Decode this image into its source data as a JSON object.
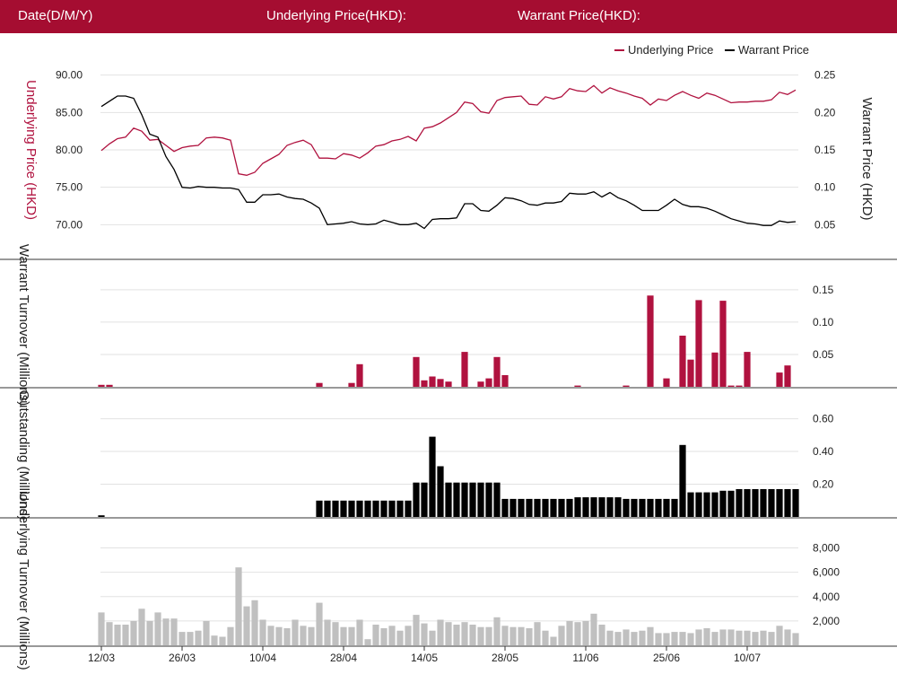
{
  "header": {
    "date_label": "Date(D/M/Y)",
    "underlying_label": "Underlying Price(HKD):",
    "warrant_label": "Warrant Price(HKD):"
  },
  "colors": {
    "header_bg": "#a50d31",
    "underlying": "#b0123f",
    "warrant": "#000000",
    "underlying_turnover": "#c0c0c0"
  },
  "legend": {
    "underlying": "Underlying Price",
    "warrant": "Warrant Price"
  },
  "chart_data": [
    {
      "type": "line",
      "title": "",
      "y_left_label": "Underlying Price (HKD)",
      "y_right_label": "Warrant  Price (HKD)",
      "y_left_ticks": [
        "70.00",
        "75.00",
        "80.00",
        "85.00",
        "90.00"
      ],
      "y_right_ticks": [
        "0.05",
        "0.10",
        "0.15",
        "0.20",
        "0.25"
      ],
      "ylim_left": [
        68,
        92
      ],
      "ylim_right": [
        0.03,
        0.27
      ],
      "x_tick_labels": [
        "12/03",
        "26/03",
        "10/04",
        "28/04",
        "14/05",
        "28/05",
        "11/06",
        "25/06",
        "10/07"
      ],
      "series": [
        {
          "name": "Underlying Price",
          "axis": "left",
          "values": [
            79.9,
            80.8,
            81.5,
            81.7,
            82.9,
            82.5,
            81.3,
            81.4,
            80.6,
            79.8,
            80.3,
            80.5,
            80.6,
            81.6,
            81.7,
            81.6,
            81.3,
            76.8,
            76.6,
            77.0,
            78.2,
            78.8,
            79.4,
            80.6,
            81.0,
            81.3,
            80.7,
            78.9,
            78.9,
            78.8,
            79.5,
            79.3,
            78.9,
            79.6,
            80.5,
            80.7,
            81.2,
            81.4,
            81.8,
            81.2,
            82.9,
            83.1,
            83.6,
            84.3,
            85.0,
            86.4,
            86.2,
            85.1,
            84.9,
            86.6,
            87.0,
            87.1,
            87.2,
            86.1,
            86.0,
            87.1,
            86.8,
            87.1,
            88.2,
            87.9,
            87.8,
            88.6,
            87.6,
            88.3,
            87.9,
            87.6,
            87.2,
            86.9,
            86.0,
            86.8,
            86.6,
            87.3,
            87.8,
            87.3,
            86.9,
            87.6,
            87.3,
            86.8,
            86.3,
            86.4,
            86.4,
            86.5,
            86.5,
            86.7,
            87.7,
            87.4,
            88.0
          ]
        },
        {
          "name": "Warrant Price",
          "axis": "right",
          "values": [
            0.208,
            0.215,
            0.222,
            0.222,
            0.219,
            0.197,
            0.171,
            0.167,
            0.141,
            0.124,
            0.1,
            0.099,
            0.101,
            0.1,
            0.1,
            0.099,
            0.099,
            0.097,
            0.08,
            0.08,
            0.09,
            0.09,
            0.091,
            0.087,
            0.085,
            0.084,
            0.079,
            0.072,
            0.05,
            0.051,
            0.052,
            0.054,
            0.051,
            0.05,
            0.051,
            0.056,
            0.053,
            0.05,
            0.05,
            0.052,
            0.045,
            0.057,
            0.058,
            0.058,
            0.059,
            0.078,
            0.078,
            0.069,
            0.068,
            0.076,
            0.086,
            0.085,
            0.082,
            0.077,
            0.076,
            0.079,
            0.079,
            0.081,
            0.092,
            0.091,
            0.091,
            0.094,
            0.087,
            0.093,
            0.086,
            0.082,
            0.076,
            0.069,
            0.069,
            0.069,
            0.076,
            0.084,
            0.077,
            0.074,
            0.074,
            0.072,
            0.068,
            0.063,
            0.058,
            0.055,
            0.052,
            0.051,
            0.049,
            0.049,
            0.055,
            0.053,
            0.054
          ]
        }
      ]
    },
    {
      "type": "bar",
      "y_label": "Warrant  Turnover (Millions)",
      "y_ticks": [
        "0.05",
        "0.10",
        "0.15"
      ],
      "ylim": [
        0,
        0.172
      ],
      "values": [
        0.003,
        0.003,
        0,
        0,
        0,
        0,
        0,
        0,
        0,
        0,
        0,
        0,
        0,
        0,
        0,
        0,
        0,
        0,
        0,
        0,
        0,
        0,
        0,
        0,
        0,
        0,
        0,
        0.006,
        0,
        0,
        0,
        0.006,
        0.035,
        0,
        0,
        0,
        0,
        0,
        0,
        0.046,
        0.01,
        0.016,
        0.012,
        0.008,
        0,
        0.054,
        0,
        0.008,
        0.013,
        0.046,
        0.018,
        0,
        0,
        0,
        0,
        0,
        0,
        0,
        0,
        0.002,
        0,
        0,
        0,
        0,
        0,
        0.002,
        0,
        0,
        0.141,
        0,
        0.013,
        0,
        0.079,
        0.042,
        0.134,
        0,
        0.053,
        0.133,
        0.002,
        0.002,
        0.054,
        0,
        0,
        0,
        0.022,
        0.033,
        0
      ]
    },
    {
      "type": "bar",
      "y_label": "Outstanding (Millions)",
      "y_ticks": [
        "0.20",
        "0.40",
        "0.60"
      ],
      "ylim": [
        0,
        0.68
      ],
      "values": [
        0.01,
        0,
        0,
        0,
        0,
        0,
        0,
        0,
        0,
        0,
        0,
        0,
        0,
        0,
        0,
        0,
        0,
        0,
        0,
        0,
        0,
        0,
        0,
        0,
        0,
        0,
        0,
        0.1,
        0.1,
        0.1,
        0.1,
        0.1,
        0.1,
        0.1,
        0.1,
        0.1,
        0.1,
        0.1,
        0.1,
        0.21,
        0.21,
        0.49,
        0.31,
        0.21,
        0.21,
        0.21,
        0.21,
        0.21,
        0.21,
        0.21,
        0.11,
        0.11,
        0.11,
        0.11,
        0.11,
        0.11,
        0.11,
        0.11,
        0.11,
        0.12,
        0.12,
        0.12,
        0.12,
        0.12,
        0.12,
        0.11,
        0.11,
        0.11,
        0.11,
        0.11,
        0.11,
        0.11,
        0.44,
        0.15,
        0.15,
        0.15,
        0.15,
        0.16,
        0.16,
        0.17,
        0.17,
        0.17,
        0.17,
        0.17,
        0.17,
        0.17,
        0.17
      ]
    },
    {
      "type": "bar",
      "y_label": "Underlying Turnover (Millions)",
      "y_ticks": [
        "2,000",
        "4,000",
        "6,000",
        "8,000"
      ],
      "ylim": [
        0,
        9000
      ],
      "values": [
        2700,
        1900,
        1700,
        1700,
        2000,
        3000,
        2000,
        2700,
        2200,
        2200,
        1100,
        1100,
        1200,
        2000,
        800,
        700,
        1500,
        6400,
        3200,
        3700,
        2100,
        1600,
        1500,
        1400,
        2100,
        1600,
        1500,
        3500,
        2100,
        1900,
        1500,
        1500,
        2100,
        500,
        1700,
        1400,
        1600,
        1200,
        1600,
        2500,
        1800,
        1200,
        2100,
        1900,
        1700,
        1900,
        1700,
        1500,
        1500,
        2300,
        1600,
        1500,
        1500,
        1400,
        1900,
        1200,
        700,
        1600,
        2000,
        1900,
        2000,
        2600,
        1700,
        1200,
        1100,
        1300,
        1100,
        1200,
        1500,
        1000,
        1000,
        1100,
        1100,
        1000,
        1300,
        1400,
        1100,
        1300,
        1300,
        1200,
        1200,
        1100,
        1200,
        1100,
        1600,
        1300,
        1000
      ]
    }
  ]
}
